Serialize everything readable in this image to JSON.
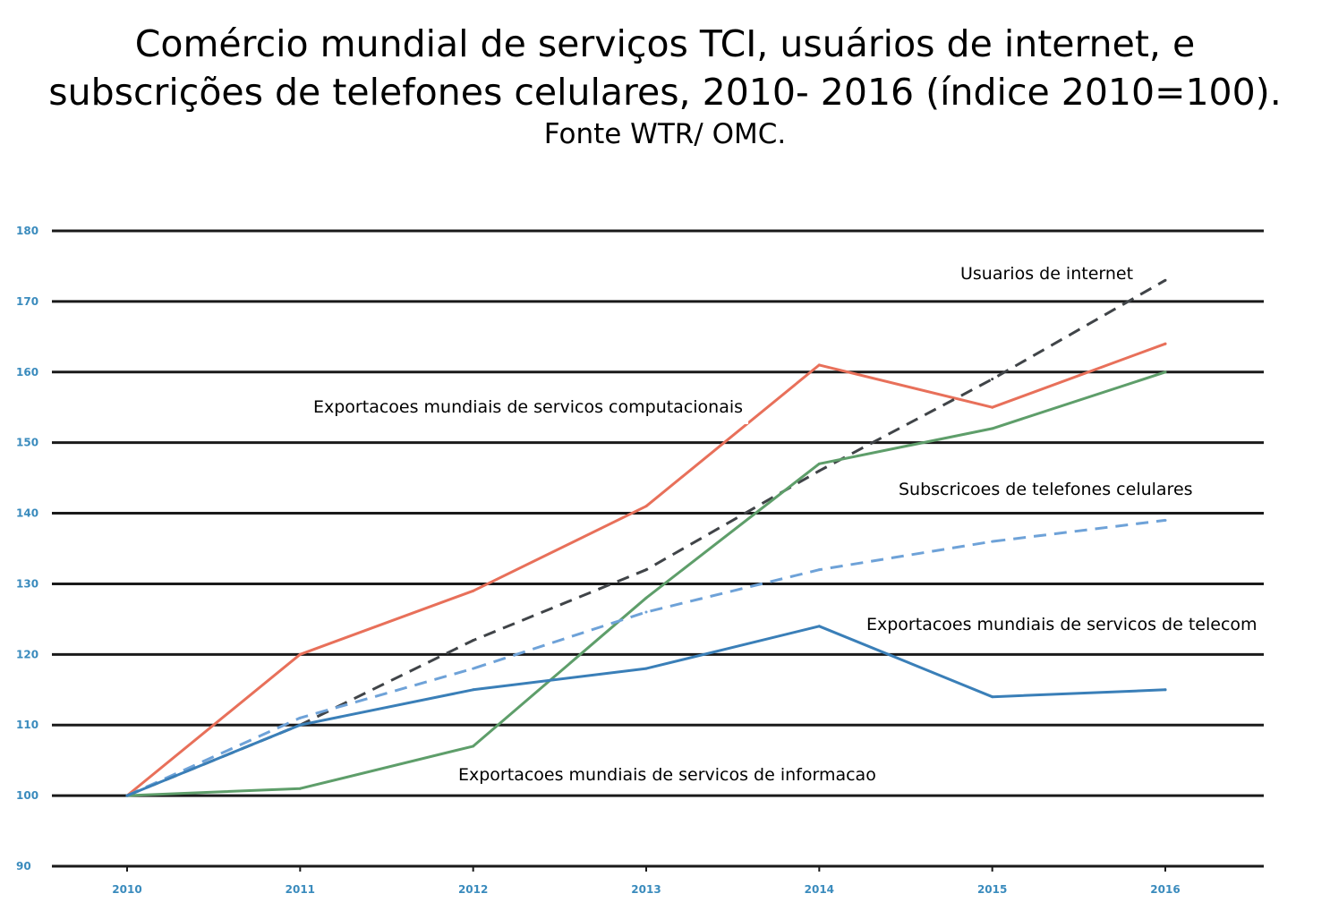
{
  "title": {
    "line1": "Comércio mundial de serviços TCI, usuários de internet, e",
    "line2": "subscrições de telefones celulares, 2010- 2016 (índice 2010=100).",
    "source": "Fonte WTR/ OMC."
  },
  "chart_data": {
    "type": "line",
    "title": "Comércio mundial de serviços TCI, usuários de internet, e subscrições de telefones celulares, 2010- 2016 (índice 2010=100).",
    "subtitle": "Fonte WTR/ OMC.",
    "xlabel": "",
    "ylabel": "",
    "categories": [
      "2010",
      "2011",
      "2012",
      "2013",
      "2014",
      "2015",
      "2016"
    ],
    "ylim": [
      90,
      180
    ],
    "yticks": [
      "90",
      "100",
      "110",
      "120",
      "130",
      "140",
      "150",
      "160",
      "170",
      "180"
    ],
    "grid": true,
    "legend": "none",
    "series": [
      {
        "name": "Exportacoes mundiais de servicos computacionais",
        "color": "#e8705a",
        "dashed": false,
        "values": [
          100,
          120,
          129,
          141,
          161,
          155,
          164
        ]
      },
      {
        "name": "Usuarios de internet",
        "color": "#404448",
        "dashed": true,
        "values": [
          100,
          110,
          122,
          132,
          146,
          159,
          173
        ]
      },
      {
        "name": "Exportacoes mundiais de servicos de informacao",
        "color": "#5e9e6a",
        "dashed": false,
        "values": [
          100,
          101,
          107,
          128,
          147,
          152,
          160
        ]
      },
      {
        "name": "Subscricoes de telefones celulares",
        "color": "#6ea2d8",
        "dashed": true,
        "values": [
          100,
          111,
          118,
          126,
          132,
          136,
          139
        ]
      },
      {
        "name": "Exportacoes mundiais de servicos de telecom",
        "color": "#3a7fb8",
        "dashed": false,
        "values": [
          100,
          110,
          115,
          118,
          124,
          114,
          115
        ]
      }
    ]
  }
}
